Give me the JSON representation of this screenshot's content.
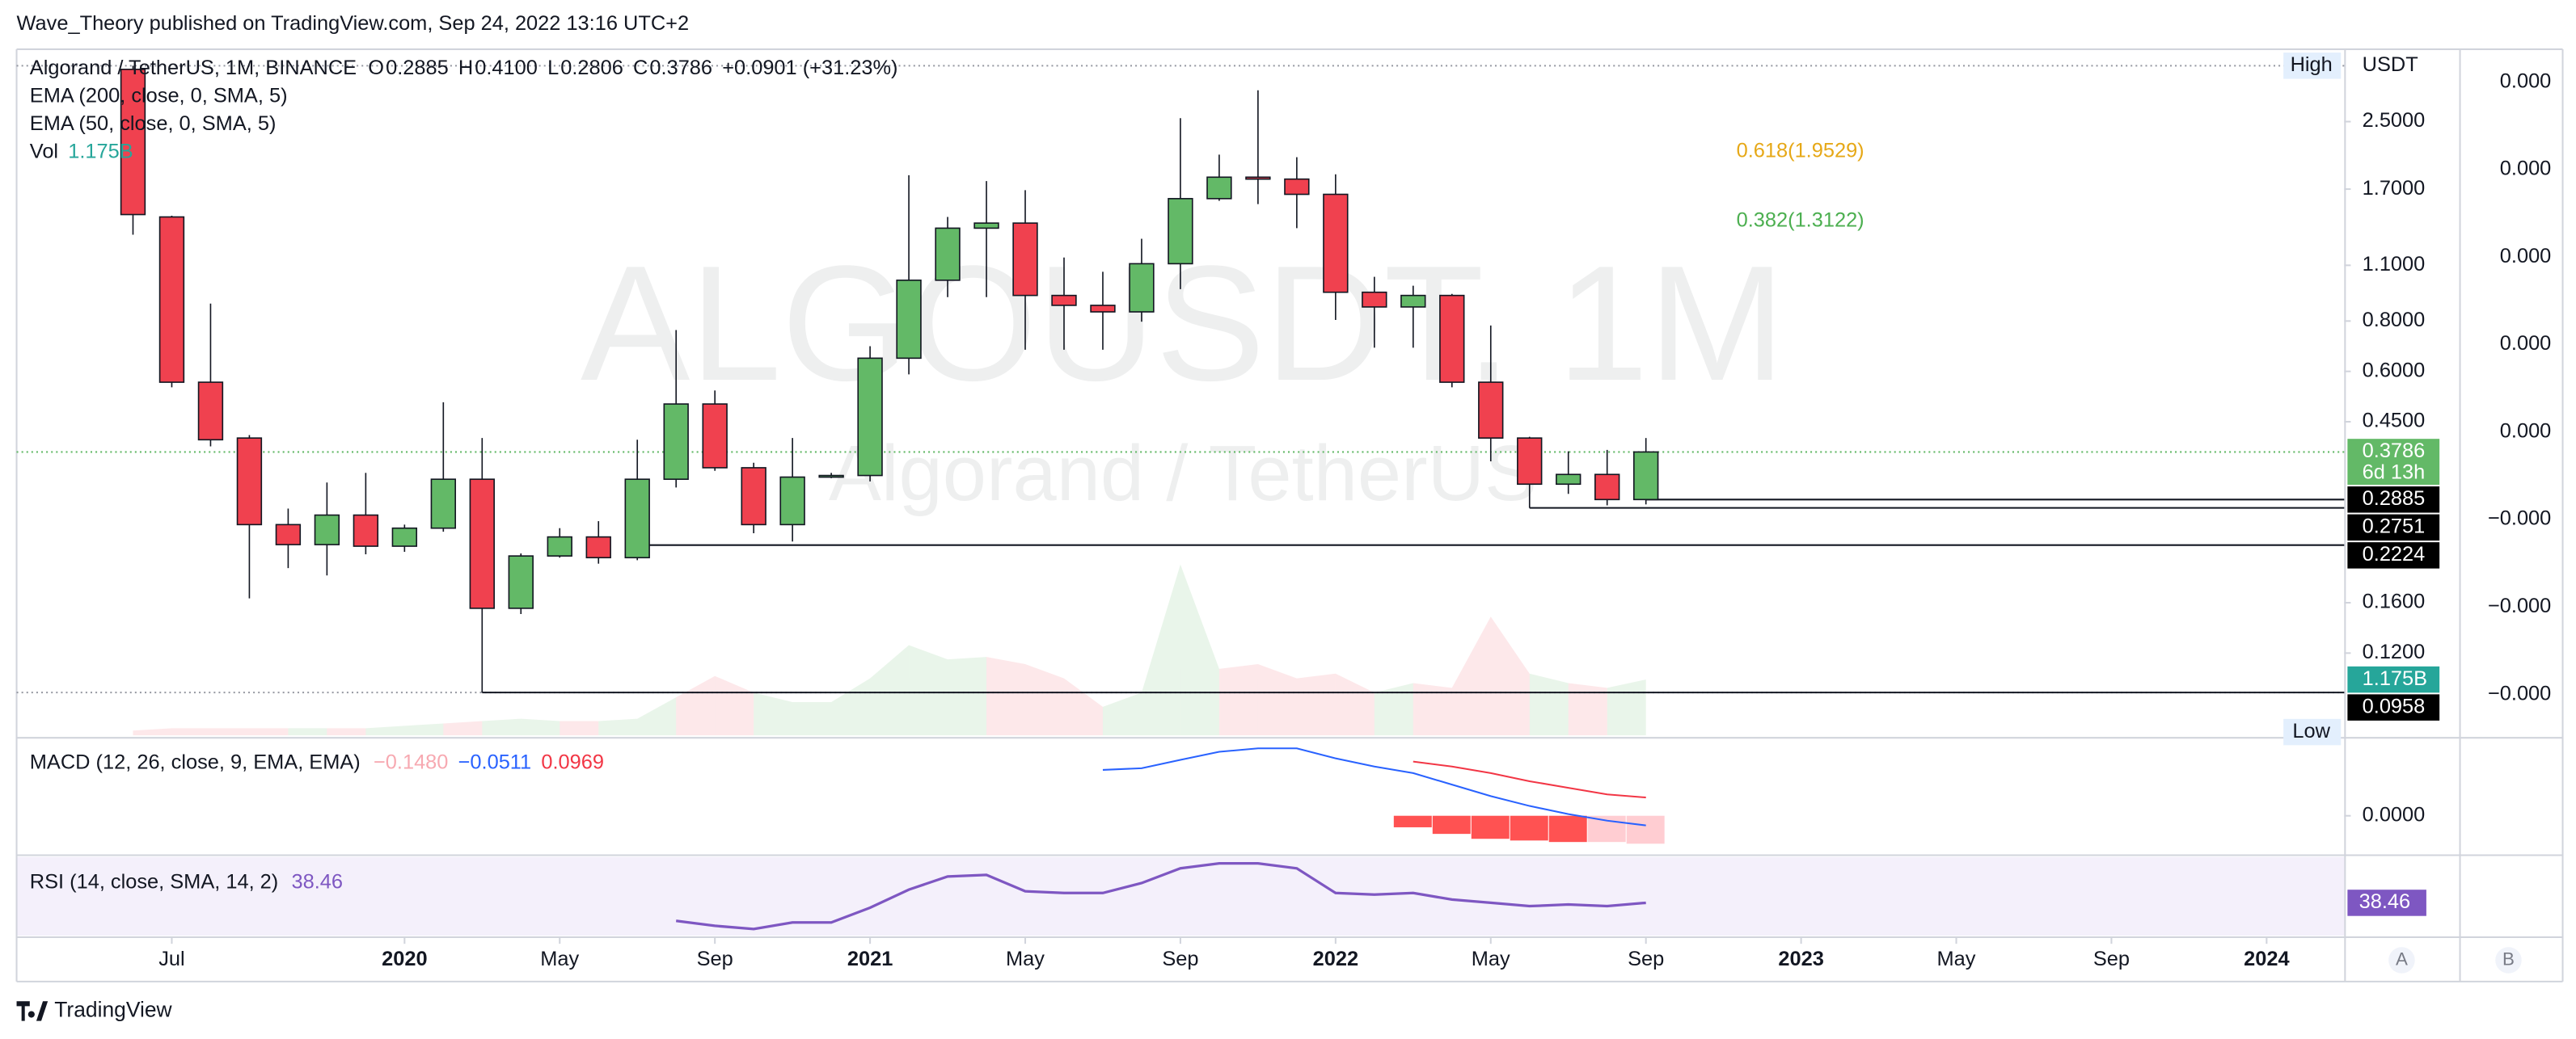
{
  "header": {
    "publisher": "Wave_Theory published on TradingView.com, Sep 24, 2022 13:16 UTC+2"
  },
  "footer": {
    "logo": "TradingView"
  },
  "chart_data": {
    "type": "candlestick",
    "watermark": [
      "ALGOUSDT, 1M",
      "Algorand / TetherUS"
    ],
    "legend": {
      "symbol": "Algorand / TetherUS, 1M, BINANCE",
      "ohlc_keys": [
        "O",
        "H",
        "L",
        "C"
      ],
      "ohlc_labels": [
        "0.2885",
        "0.4100",
        "0.2806",
        "0.3786"
      ],
      "change": "+0.0901 (+31.23%)",
      "indicators": [
        "EMA (200, close, 0, SMA, 5)",
        "EMA (50, close, 0, SMA, 5)"
      ],
      "volume_name": "Vol"
    },
    "x": [
      "2019-06",
      "2019-07",
      "2019-08",
      "2019-09",
      "2019-10",
      "2019-11",
      "2019-12",
      "2020-01",
      "2020-02",
      "2020-03",
      "2020-04",
      "2020-05",
      "2020-06",
      "2020-07",
      "2020-08",
      "2020-09",
      "2020-10",
      "2020-11",
      "2020-12",
      "2021-01",
      "2021-02",
      "2021-03",
      "2021-04",
      "2021-05",
      "2021-06",
      "2021-07",
      "2021-08",
      "2021-09",
      "2021-10",
      "2021-11",
      "2021-12",
      "2022-01",
      "2022-02",
      "2022-03",
      "2022-04",
      "2022-05",
      "2022-06",
      "2022-07",
      "2022-08",
      "2022-09"
    ],
    "open": [
      3.37,
      1.45,
      0.564,
      0.41,
      0.25,
      0.223,
      0.264,
      0.221,
      0.245,
      0.324,
      0.155,
      0.209,
      0.233,
      0.207,
      0.324,
      0.498,
      0.346,
      0.25,
      0.328,
      0.331,
      0.647,
      1.01,
      1.36,
      1.4,
      0.926,
      0.875,
      0.843,
      1.11,
      1.61,
      1.82,
      1.8,
      1.65,
      0.943,
      0.867,
      0.926,
      0.564,
      0.41,
      0.315,
      0.333,
      0.2885
    ],
    "high": [
      3.44,
      1.46,
      0.884,
      0.417,
      0.274,
      0.318,
      0.336,
      0.25,
      0.503,
      0.41,
      0.212,
      0.245,
      0.255,
      0.406,
      0.76,
      0.538,
      0.356,
      0.41,
      0.336,
      0.693,
      1.84,
      1.45,
      1.78,
      1.69,
      1.15,
      1.06,
      1.28,
      2.55,
      2.07,
      2.99,
      2.04,
      1.85,
      1.03,
      0.979,
      0.934,
      0.78,
      0.413,
      0.38,
      0.383,
      0.41
    ],
    "low": [
      1.31,
      0.548,
      0.391,
      0.164,
      0.195,
      0.187,
      0.211,
      0.214,
      0.24,
      0.0958,
      0.15,
      0.207,
      0.2,
      0.204,
      0.309,
      0.34,
      0.238,
      0.227,
      0.326,
      0.32,
      0.59,
      0.917,
      0.917,
      0.679,
      0.679,
      0.679,
      0.797,
      0.96,
      1.59,
      1.56,
      1.36,
      0.805,
      0.687,
      0.687,
      0.548,
      0.359,
      0.2751,
      0.298,
      0.279,
      0.2806
    ],
    "close": [
      1.47,
      0.564,
      0.406,
      0.25,
      0.223,
      0.264,
      0.221,
      0.245,
      0.324,
      0.155,
      0.209,
      0.233,
      0.207,
      0.324,
      0.498,
      0.346,
      0.25,
      0.328,
      0.331,
      0.647,
      1.01,
      1.36,
      1.4,
      0.926,
      0.875,
      0.843,
      1.11,
      1.61,
      1.82,
      1.8,
      1.65,
      0.943,
      0.867,
      0.926,
      0.564,
      0.41,
      0.315,
      0.333,
      0.2885,
      0.3786
    ],
    "up_color": "#63b967",
    "down_color": "#f0414f",
    "xlim": [
      "2019-03",
      "2024-03"
    ],
    "xticks": [
      {
        "value": "2019-07",
        "label": "Jul"
      },
      {
        "value": "2020-01",
        "label": "2020"
      },
      {
        "value": "2020-05",
        "label": "May"
      },
      {
        "value": "2020-09",
        "label": "Sep"
      },
      {
        "value": "2021-01",
        "label": "2021"
      },
      {
        "value": "2021-05",
        "label": "May"
      },
      {
        "value": "2021-09",
        "label": "Sep"
      },
      {
        "value": "2022-01",
        "label": "2022"
      },
      {
        "value": "2022-05",
        "label": "May"
      },
      {
        "value": "2022-09",
        "label": "Sep"
      },
      {
        "value": "2023-01",
        "label": "2023"
      },
      {
        "value": "2023-05",
        "label": "May"
      },
      {
        "value": "2023-09",
        "label": "Sep"
      },
      {
        "value": "2024-01",
        "label": "2024"
      }
    ],
    "log_scale": true,
    "ylim": [
      0.075,
      3.78
    ],
    "yticks": [
      {
        "value": 2.5,
        "label": "2.5000"
      },
      {
        "value": 1.7,
        "label": "1.7000"
      },
      {
        "value": 1.1,
        "label": "1.1000"
      },
      {
        "value": 0.8,
        "label": "0.8000"
      },
      {
        "value": 0.6,
        "label": "0.6000"
      },
      {
        "value": 0.45,
        "label": "0.4500"
      },
      {
        "value": 0.16,
        "label": "0.1600"
      },
      {
        "value": 0.12,
        "label": "0.1200"
      }
    ],
    "grid": false,
    "axis_unit": "USDT",
    "high_label": "High",
    "low_label": "Low",
    "countdown": "6d 13h",
    "price_lines": [
      {
        "value": 0.2885,
        "from": "2022-09"
      },
      {
        "value": 0.2751,
        "from": "2022-06"
      },
      {
        "value": 0.2224,
        "from": "2020-07"
      },
      {
        "value": 0.0958,
        "from": "2020-03"
      }
    ],
    "fib_levels": [
      {
        "price": 1.9529,
        "label": "0.618(1.9529)",
        "color": "#e6a817"
      },
      {
        "price": 1.3122,
        "label": "0.382(1.3122)",
        "color": "#4caf50"
      }
    ],
    "side_scale_labels": [
      "0.000",
      "0.000",
      "0.000",
      "0.000",
      "0.000",
      "−0.000",
      "−0.000",
      "−0.000"
    ],
    "axis_buttons": [
      "A",
      "B"
    ],
    "volume": {
      "values": [
        0.1,
        0.15,
        0.15,
        0.15,
        0.15,
        0.15,
        0.15,
        0.2,
        0.25,
        0.3,
        0.35,
        0.3,
        0.3,
        0.35,
        0.8,
        1.25,
        0.9,
        0.7,
        0.7,
        1.2,
        1.9,
        1.6,
        1.65,
        1.5,
        1.2,
        0.6,
        0.9,
        3.6,
        1.4,
        1.5,
        1.2,
        1.3,
        0.9,
        1.1,
        1.0,
        2.5,
        1.3,
        1.1,
        1.0,
        1.175
      ],
      "value_label": "1.175B",
      "ylim": [
        0,
        14.45
      ],
      "label_color": "#26a69a"
    },
    "macd": {
      "title": "MACD (12, 26, close, 9, EMA, EMA)",
      "legend_values": [
        "−0.1480",
        "−0.0511",
        "0.0969"
      ],
      "legend_colors": [
        "#f7a9b1",
        "#2962ff",
        "#f23645"
      ],
      "ylim": [
        -0.2,
        0.4
      ],
      "yticks": [
        {
          "value": 0,
          "label": "0.0000"
        }
      ],
      "histogram": {
        "values": [
          null,
          null,
          null,
          null,
          null,
          null,
          null,
          null,
          null,
          null,
          null,
          null,
          null,
          null,
          null,
          null,
          null,
          null,
          null,
          null,
          null,
          null,
          null,
          null,
          null,
          null,
          null,
          null,
          null,
          null,
          null,
          null,
          null,
          -0.061,
          -0.096,
          -0.122,
          -0.131,
          -0.139,
          -0.139,
          -0.148
        ],
        "colors": [
          null,
          null,
          null,
          null,
          null,
          null,
          null,
          null,
          null,
          null,
          null,
          null,
          null,
          null,
          null,
          null,
          null,
          null,
          null,
          null,
          null,
          null,
          null,
          null,
          null,
          null,
          null,
          null,
          null,
          null,
          null,
          null,
          null,
          "#ff5252",
          "#ff5252",
          "#ff5252",
          "#ff5252",
          "#ff5252",
          "#ffcdd2",
          "#ffcdd2"
        ]
      },
      "macd_line": {
        "color": "#2962ff",
        "values": [
          null,
          null,
          null,
          null,
          null,
          null,
          null,
          null,
          null,
          null,
          null,
          null,
          null,
          null,
          null,
          null,
          null,
          null,
          null,
          null,
          null,
          null,
          null,
          null,
          null,
          0.243,
          0.252,
          0.296,
          0.339,
          0.357,
          0.357,
          0.304,
          0.261,
          0.226,
          0.165,
          0.104,
          0.052,
          0.009,
          -0.026,
          -0.0511
        ]
      },
      "signal_line": {
        "color": "#f23645",
        "values": [
          null,
          null,
          null,
          null,
          null,
          null,
          null,
          null,
          null,
          null,
          null,
          null,
          null,
          null,
          null,
          null,
          null,
          null,
          null,
          null,
          null,
          null,
          null,
          null,
          null,
          null,
          null,
          null,
          null,
          null,
          null,
          null,
          null,
          0.287,
          0.261,
          0.226,
          0.183,
          0.148,
          0.113,
          0.0969
        ]
      }
    },
    "rsi": {
      "title": "RSI (14, close, SMA, 14, 2)",
      "value_label": "38.46",
      "color": "#7e57c2",
      "ylim": [
        16,
        70
      ],
      "values": [
        null,
        null,
        null,
        null,
        null,
        null,
        null,
        null,
        null,
        null,
        null,
        null,
        null,
        null,
        26.1,
        22.7,
        20.5,
        25.0,
        25.0,
        35.1,
        47.5,
        56.5,
        57.6,
        46.4,
        45.2,
        45.2,
        52.0,
        62.1,
        65.5,
        65.5,
        62.1,
        45.2,
        44.1,
        45.2,
        40.7,
        38.5,
        36.2,
        37.3,
        36.2,
        38.46
      ]
    }
  }
}
